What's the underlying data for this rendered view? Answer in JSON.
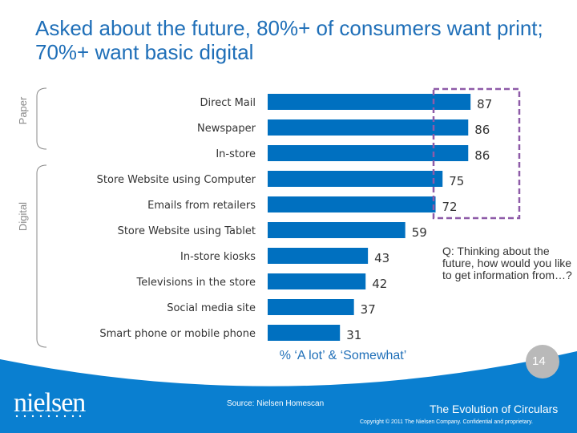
{
  "title": "Asked about the future, 80%+ of consumers want print; 70%+ want basic digital",
  "question": "Q: Thinking about the future, how would you like to get information from…?",
  "page_number": "14",
  "source": "Source:  Nielsen Homescan",
  "deck_title": "The Evolution of Circulars",
  "copyright": "Copyright © 2011 The Nielsen Company. Confidential and proprietary.",
  "logo_text": "nielsen",
  "colors": {
    "bar": "#0070c0",
    "title": "#1f6fb8",
    "footer": "#0a7fd0",
    "highlight_box": "#8e5ba8"
  },
  "chart_data": {
    "type": "bar",
    "orientation": "horizontal",
    "xlabel": "% ‘A lot’ & ‘Somewhat’",
    "groups": [
      {
        "label": "Paper",
        "categories": [
          "Direct Mail",
          "Newspaper"
        ]
      },
      {
        "label": "Digital",
        "categories": [
          "Store Website using Computer",
          "Emails from retailers",
          "Store Website using Tablet",
          "In-store kiosks",
          "Televisions in the store",
          "Social media site",
          "Smart phone or mobile phone"
        ]
      }
    ],
    "categories": [
      "Direct Mail",
      "Newspaper",
      "In-store",
      "Store Website using Computer",
      "Emails from retailers",
      "Store Website using Tablet",
      "In-store kiosks",
      "Televisions in the store",
      "Social media site",
      "Smart phone or mobile phone"
    ],
    "values": [
      87,
      86,
      86,
      75,
      72,
      59,
      43,
      42,
      37,
      31
    ],
    "highlighted": [
      "Direct Mail",
      "Newspaper",
      "In-store",
      "Store Website using Computer",
      "Emails from retailers"
    ],
    "grid": false
  }
}
